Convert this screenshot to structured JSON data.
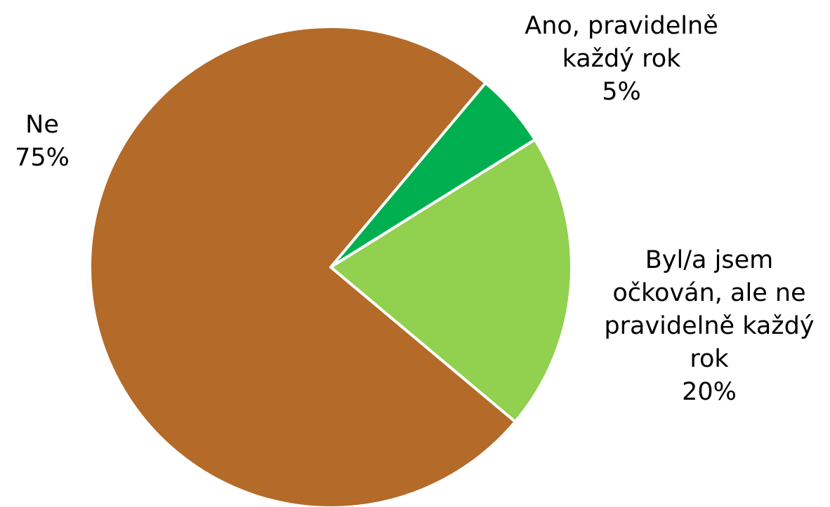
{
  "chart_data": {
    "type": "pie",
    "categories": [
      "Ano, pravidelně každý rok",
      "Byl/a jsem očkován, ale ne pravidelně každý rok",
      "Ne"
    ],
    "values": [
      5,
      20,
      75
    ],
    "value_labels": [
      "5%",
      "20%",
      "75%"
    ],
    "colors": [
      "#00b050",
      "#92d050",
      "#b46a28"
    ]
  }
}
